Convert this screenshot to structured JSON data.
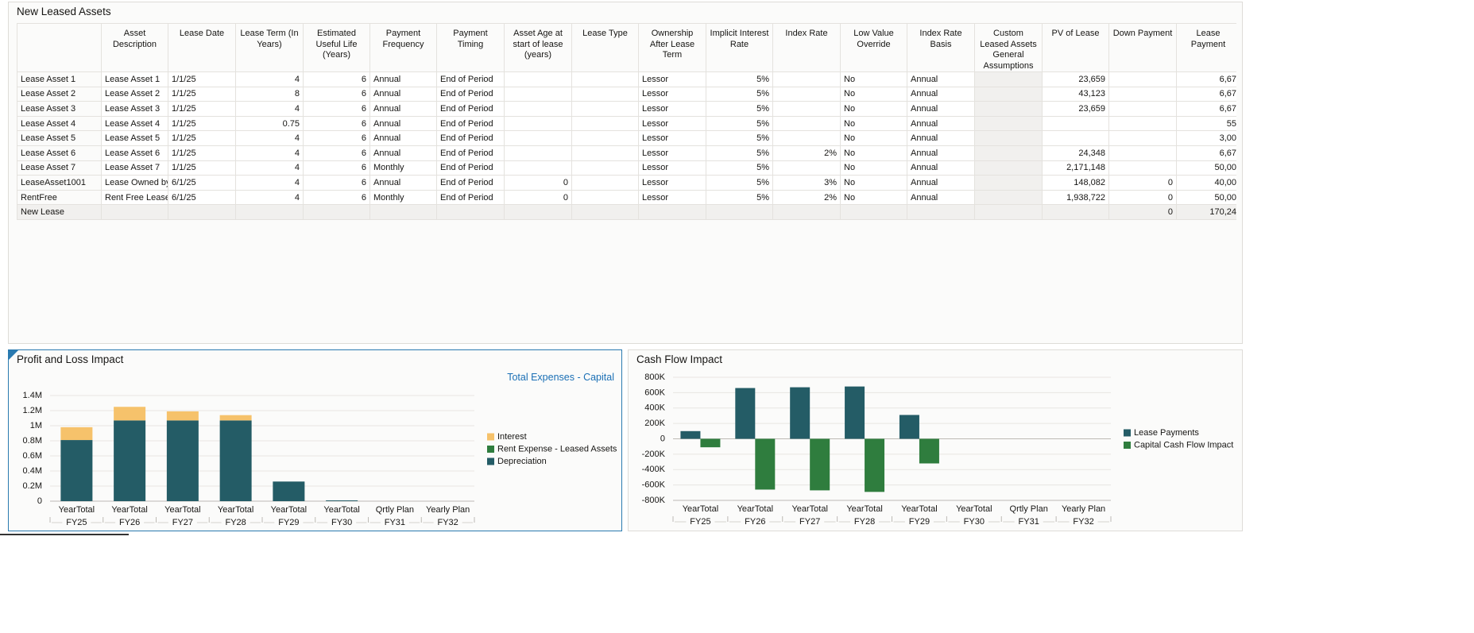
{
  "table": {
    "title": "New Leased Assets",
    "columns": [
      null,
      "Asset Description",
      "Lease Date",
      "Lease Term (In Years)",
      "Estimated Useful Life (Years)",
      "Payment Frequency",
      "Payment Timing",
      "Asset Age at start of lease (years)",
      "Lease Type",
      "Ownership After Lease Term",
      "Implicit Interest Rate",
      "Index Rate",
      "Low Value Override",
      "Index Rate Basis",
      "Custom Leased Assets General Assumptions",
      "PV of Lease",
      "Down Payment",
      "Lease Payment"
    ],
    "rows": [
      {
        "label": "Lease Asset 1",
        "cells": [
          "Lease Asset 1",
          "1/1/25",
          "4",
          "6",
          "Annual",
          "End of Period",
          null,
          null,
          "Lessor",
          "5%",
          null,
          "No",
          "Annual",
          null,
          "23,659",
          null,
          "6,67"
        ]
      },
      {
        "label": "Lease Asset 2",
        "cells": [
          "Lease Asset 2",
          "1/1/25",
          "8",
          "6",
          "Annual",
          "End of Period",
          null,
          null,
          "Lessor",
          "5%",
          null,
          "No",
          "Annual",
          null,
          "43,123",
          null,
          "6,67"
        ]
      },
      {
        "label": "Lease Asset 3",
        "cells": [
          "Lease Asset 3",
          "1/1/25",
          "4",
          "6",
          "Annual",
          "End of Period",
          null,
          null,
          "Lessor",
          "5%",
          null,
          "No",
          "Annual",
          null,
          "23,659",
          null,
          "6,67"
        ]
      },
      {
        "label": "Lease Asset 4",
        "cells": [
          "Lease Asset 4",
          "1/1/25",
          "0.75",
          "6",
          "Annual",
          "End of Period",
          null,
          null,
          "Lessor",
          "5%",
          null,
          "No",
          "Annual",
          null,
          null,
          null,
          "55"
        ]
      },
      {
        "label": "Lease Asset 5",
        "cells": [
          "Lease Asset 5",
          "1/1/25",
          "4",
          "6",
          "Annual",
          "End of Period",
          null,
          null,
          "Lessor",
          "5%",
          null,
          "No",
          "Annual",
          null,
          null,
          null,
          "3,00"
        ]
      },
      {
        "label": "Lease Asset 6",
        "cells": [
          "Lease Asset 6",
          "1/1/25",
          "4",
          "6",
          "Annual",
          "End of Period",
          null,
          null,
          "Lessor",
          "5%",
          "2%",
          "No",
          "Annual",
          null,
          "24,348",
          null,
          "6,67"
        ]
      },
      {
        "label": "Lease Asset 7",
        "cells": [
          "Lease Asset 7",
          "1/1/25",
          "4",
          "6",
          "Monthly",
          "End of Period",
          null,
          null,
          "Lessor",
          "5%",
          null,
          "No",
          "Annual",
          null,
          "2,171,148",
          null,
          "50,00"
        ]
      },
      {
        "label": "LeaseAsset1001",
        "cells": [
          "Lease Owned by",
          "6/1/25",
          "4",
          "6",
          "Annual",
          "End of Period",
          "0",
          null,
          "Lessor",
          "5%",
          "3%",
          "No",
          "Annual",
          null,
          "148,082",
          "0",
          "40,00"
        ]
      },
      {
        "label": "RentFree",
        "cells": [
          "Rent Free Lease",
          "6/1/25",
          "4",
          "6",
          "Monthly",
          "End of Period",
          "0",
          null,
          "Lessor",
          "5%",
          "2%",
          "No",
          "Annual",
          null,
          "1,938,722",
          "0",
          "50,00"
        ]
      },
      {
        "label": "New Lease",
        "cells": [
          null,
          null,
          null,
          null,
          null,
          null,
          null,
          null,
          null,
          null,
          null,
          null,
          null,
          null,
          null,
          "0",
          "170,24"
        ]
      }
    ]
  },
  "chart_data": [
    {
      "type": "bar",
      "stacked": true,
      "title": "Profit and Loss Impact",
      "subtitle": "Total Expenses - Capital",
      "categories": [
        "YearTotal",
        "YearTotal",
        "YearTotal",
        "YearTotal",
        "YearTotal",
        "YearTotal",
        "Qrtly Plan",
        "Yearly Plan"
      ],
      "category_groups": [
        "FY25",
        "FY26",
        "FY27",
        "FY28",
        "FY29",
        "FY30",
        "FY31",
        "FY32"
      ],
      "series": [
        {
          "name": "Interest",
          "color": "#f6c26b",
          "values": [
            170000,
            180000,
            120000,
            70000,
            null,
            null,
            null,
            null
          ]
        },
        {
          "name": "Rent Expense - Leased Assets",
          "color": "#2f7d3e",
          "values": [
            null,
            null,
            null,
            null,
            null,
            null,
            null,
            null
          ]
        },
        {
          "name": "Depreciation",
          "color": "#245c66",
          "values": [
            810000,
            1070000,
            1070000,
            1070000,
            260000,
            10000,
            null,
            null
          ]
        }
      ],
      "ylim": [
        0,
        1400000
      ],
      "yticks": [
        0,
        {
          "value": 200000,
          "label": "0.2M"
        },
        {
          "value": 400000,
          "label": "0.4M"
        },
        {
          "value": 600000,
          "label": "0.6M"
        },
        {
          "value": 800000,
          "label": "0.8M"
        },
        {
          "value": 1000000,
          "label": "1M"
        },
        {
          "value": 1200000,
          "label": "1.2M"
        },
        {
          "value": 1400000,
          "label": "1.4M"
        }
      ],
      "grid": true
    },
    {
      "type": "bar",
      "stacked": false,
      "title": "Cash Flow Impact",
      "categories": [
        "YearTotal",
        "YearTotal",
        "YearTotal",
        "YearTotal",
        "YearTotal",
        "YearTotal",
        "Qrtly Plan",
        "Yearly Plan"
      ],
      "category_groups": [
        "FY25",
        "FY26",
        "FY27",
        "FY28",
        "FY29",
        "FY30",
        "FY31",
        "FY32"
      ],
      "series": [
        {
          "name": "Lease Payments",
          "color": "#245c66",
          "values": [
            100000,
            660000,
            670000,
            680000,
            310000,
            null,
            null,
            null
          ]
        },
        {
          "name": "Capital Cash Flow Impact",
          "color": "#2f7d3e",
          "values": [
            -110000,
            -660000,
            -670000,
            -690000,
            -320000,
            null,
            null,
            null
          ]
        }
      ],
      "ylim": [
        -800000,
        800000
      ],
      "yticks": [
        {
          "value": -800000,
          "label": "-800K"
        },
        {
          "value": -600000,
          "label": "-600K"
        },
        {
          "value": -400000,
          "label": "-400K"
        },
        {
          "value": -200000,
          "label": "-200K"
        },
        0,
        {
          "value": 200000,
          "label": "200K"
        },
        {
          "value": 400000,
          "label": "400K"
        },
        {
          "value": 600000,
          "label": "600K"
        },
        {
          "value": 800000,
          "label": "800K"
        }
      ],
      "grid": true
    }
  ]
}
